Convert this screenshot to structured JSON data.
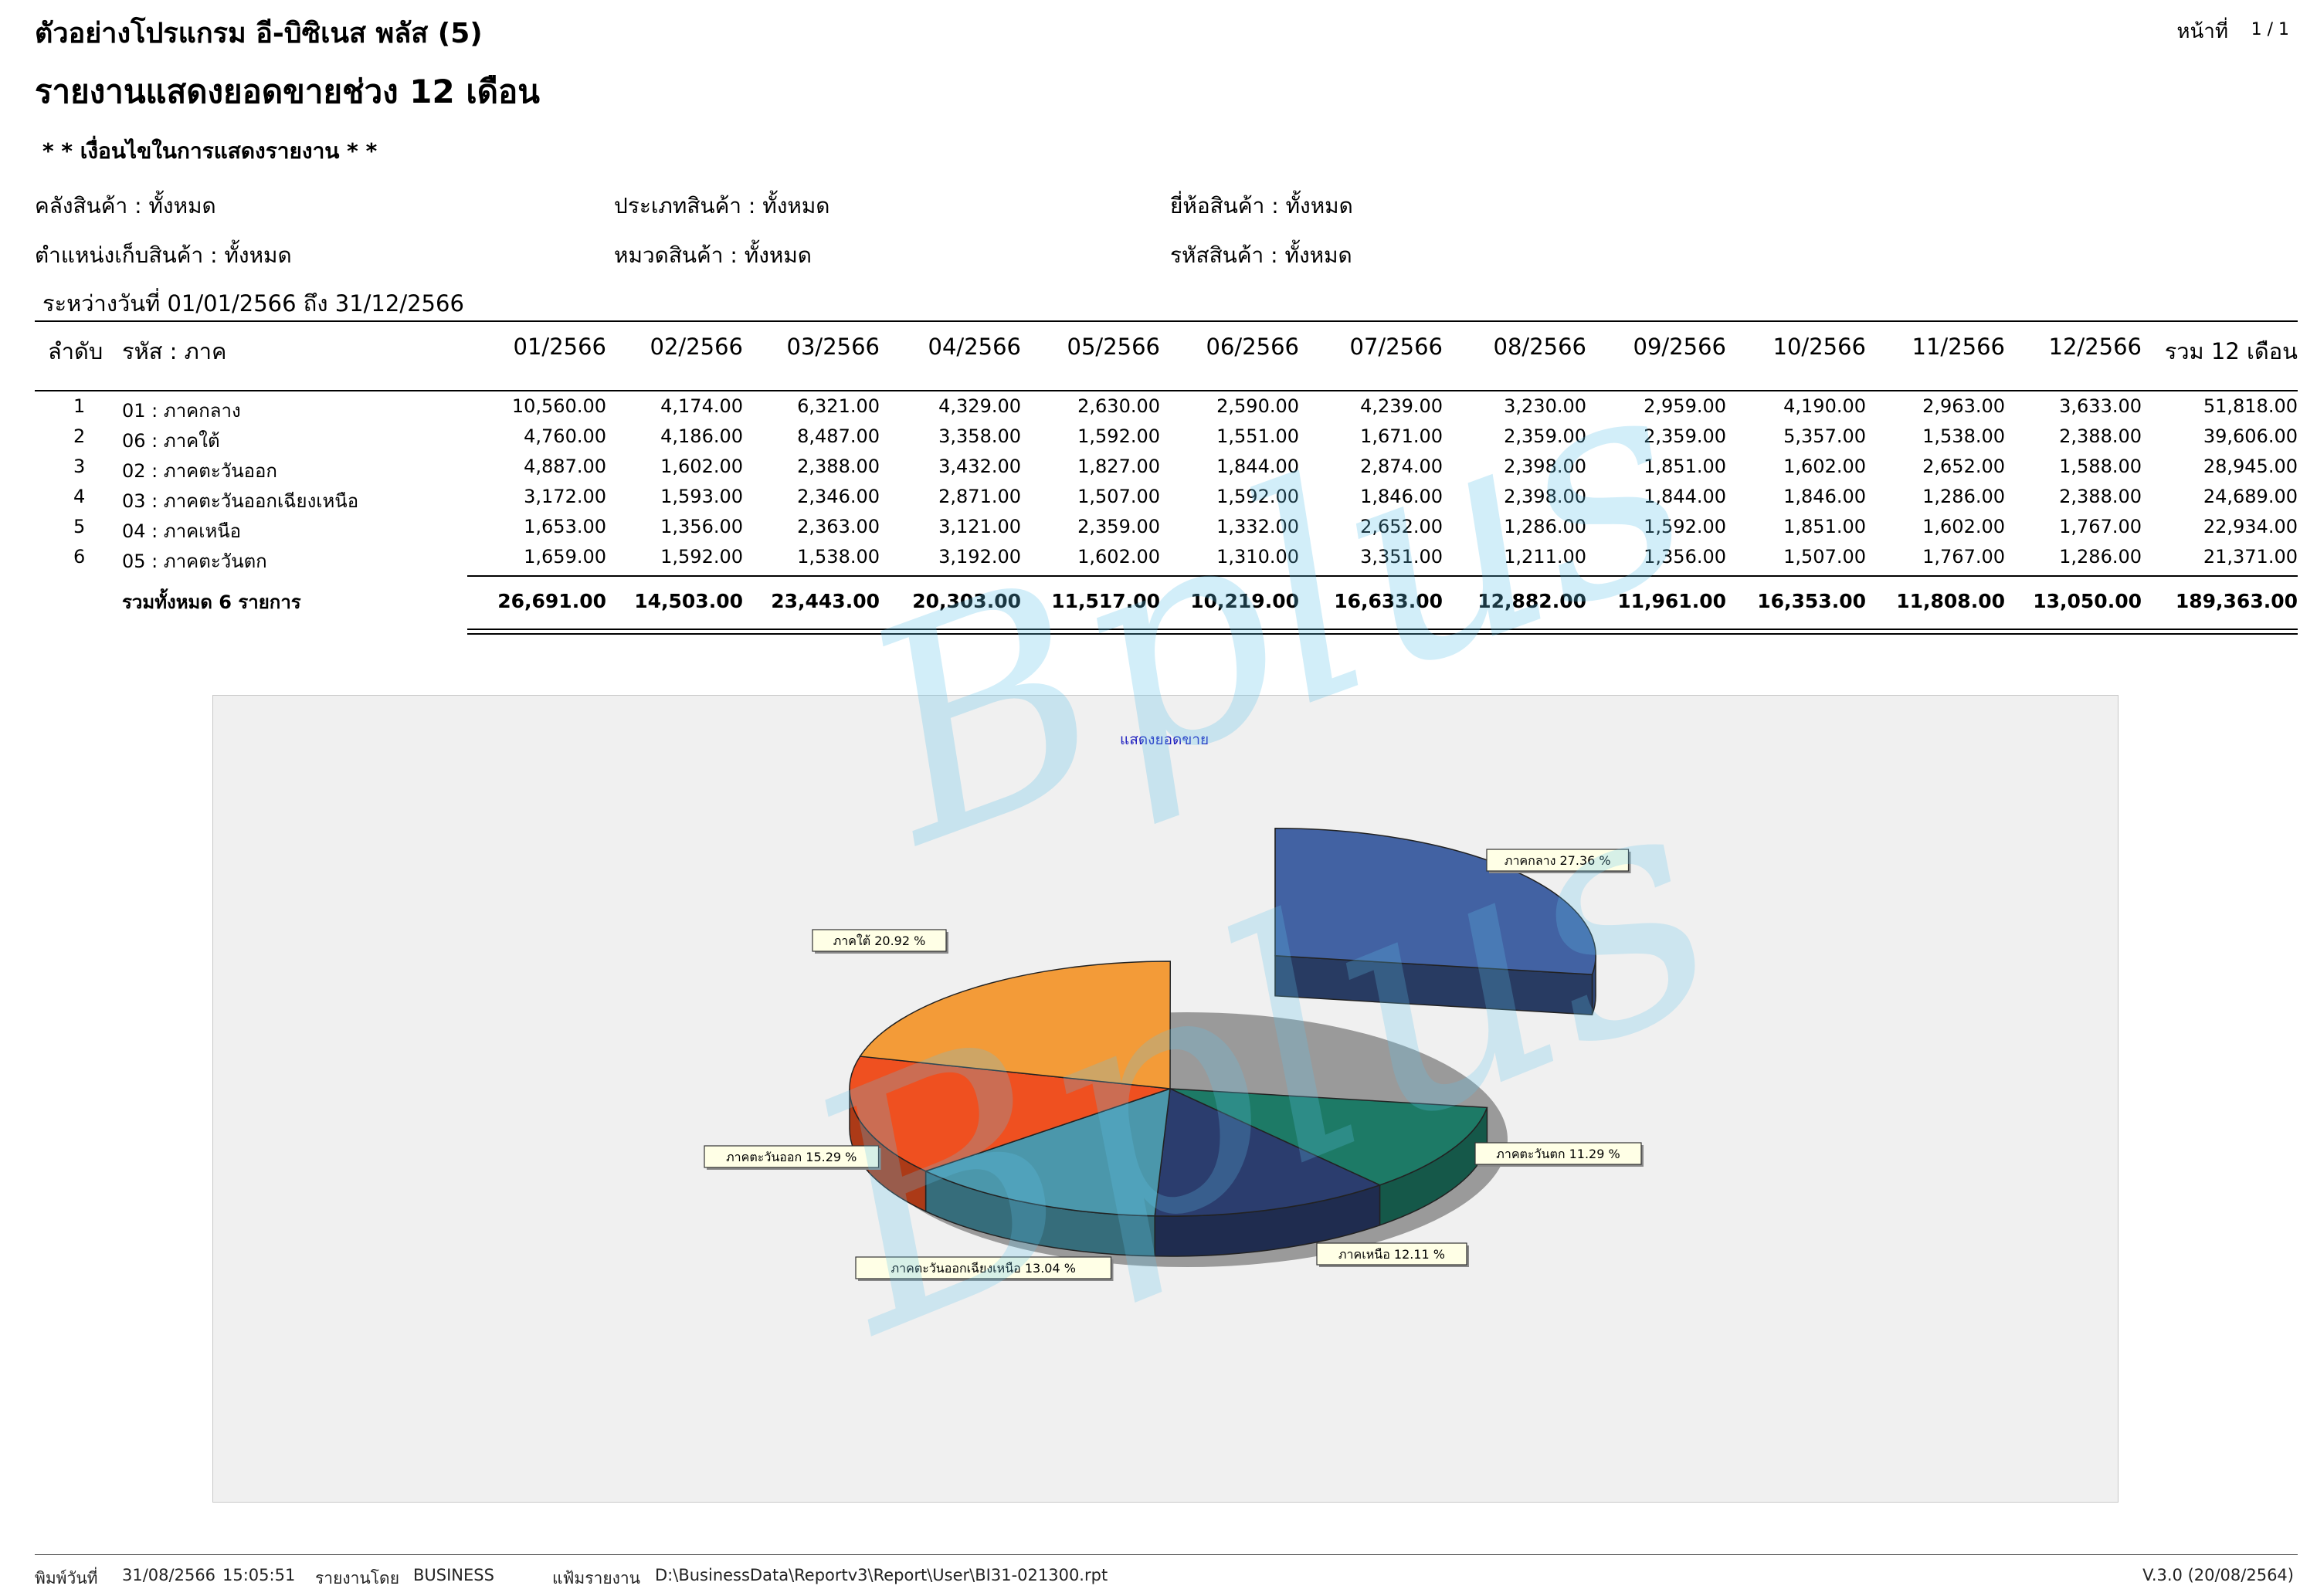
{
  "header": {
    "company": "ตัวอย่างโปรแกรม อี-บิซิเนส พลัส (5)",
    "report_title": "รายงานแสดงยอดขายช่วง 12 เดือน",
    "page_label": "หน้าที่",
    "page_number": "1 / 1"
  },
  "conditions": {
    "heading": "* * เงื่อนไขในการแสดงรายงาน * *",
    "warehouse": "คลังสินค้า : ทั้งหมด",
    "product_type": "ประเภทสินค้า : ทั้งหมด",
    "brand": "ยี่ห้อสินค้า : ทั้งหมด",
    "location": "ตำแหน่งเก็บสินค้า : ทั้งหมด",
    "category": "หมวดสินค้า : ทั้งหมด",
    "product_code": "รหัสสินค้า : ทั้งหมด",
    "date_range": "ระหว่างวันที่  01/01/2566  ถึง  31/12/2566"
  },
  "table": {
    "col_seq": "ลำดับ",
    "col_code": "รหัส : ภาค",
    "months": [
      "01/2566",
      "02/2566",
      "03/2566",
      "04/2566",
      "05/2566",
      "06/2566",
      "07/2566",
      "08/2566",
      "09/2566",
      "10/2566",
      "11/2566",
      "12/2566"
    ],
    "col_total": "รวม 12 เดือน",
    "rows": [
      {
        "seq": "1",
        "code": "01  :  ภาคกลาง",
        "values": [
          "10,560.00",
          "4,174.00",
          "6,321.00",
          "4,329.00",
          "2,630.00",
          "2,590.00",
          "4,239.00",
          "3,230.00",
          "2,959.00",
          "4,190.00",
          "2,963.00",
          "3,633.00"
        ],
        "total": "51,818.00"
      },
      {
        "seq": "2",
        "code": "06  :  ภาคใต้",
        "values": [
          "4,760.00",
          "4,186.00",
          "8,487.00",
          "3,358.00",
          "1,592.00",
          "1,551.00",
          "1,671.00",
          "2,359.00",
          "2,359.00",
          "5,357.00",
          "1,538.00",
          "2,388.00"
        ],
        "total": "39,606.00"
      },
      {
        "seq": "3",
        "code": "02  :  ภาคตะวันออก",
        "values": [
          "4,887.00",
          "1,602.00",
          "2,388.00",
          "3,432.00",
          "1,827.00",
          "1,844.00",
          "2,874.00",
          "2,398.00",
          "1,851.00",
          "1,602.00",
          "2,652.00",
          "1,588.00"
        ],
        "total": "28,945.00"
      },
      {
        "seq": "4",
        "code": "03  :  ภาคตะวันออกเฉียงเหนือ",
        "values": [
          "3,172.00",
          "1,593.00",
          "2,346.00",
          "2,871.00",
          "1,507.00",
          "1,592.00",
          "1,846.00",
          "2,398.00",
          "1,844.00",
          "1,846.00",
          "1,286.00",
          "2,388.00"
        ],
        "total": "24,689.00"
      },
      {
        "seq": "5",
        "code": "04  :  ภาคเหนือ",
        "values": [
          "1,653.00",
          "1,356.00",
          "2,363.00",
          "3,121.00",
          "2,359.00",
          "1,332.00",
          "2,652.00",
          "1,286.00",
          "1,592.00",
          "1,851.00",
          "1,602.00",
          "1,767.00"
        ],
        "total": "22,934.00"
      },
      {
        "seq": "6",
        "code": "05  :  ภาคตะวันตก",
        "values": [
          "1,659.00",
          "1,592.00",
          "1,538.00",
          "3,192.00",
          "1,602.00",
          "1,310.00",
          "3,351.00",
          "1,211.00",
          "1,356.00",
          "1,507.00",
          "1,767.00",
          "1,286.00"
        ],
        "total": "21,371.00"
      }
    ],
    "total_label": "รวมทั้งหมด 6 รายการ",
    "total_values": [
      "26,691.00",
      "14,503.00",
      "23,443.00",
      "20,303.00",
      "11,517.00",
      "10,219.00",
      "16,633.00",
      "12,882.00",
      "11,961.00",
      "16,353.00",
      "11,808.00",
      "13,050.00"
    ],
    "grand_total": "189,363.00"
  },
  "chart_data": {
    "type": "pie",
    "title": "แสดงยอดขาย",
    "slices": [
      {
        "label": "ภาคกลาง 27.36 %",
        "percent": 27.36,
        "color": "#4262a3",
        "exploded": true
      },
      {
        "label": "ภาคตะวันตก 11.29 %",
        "percent": 11.29,
        "color": "#1d7a66"
      },
      {
        "label": "ภาคเหนือ 12.11 %",
        "percent": 12.11,
        "color": "#2b3d6e"
      },
      {
        "label": "ภาคตะวันออกเฉียงเหนือ 13.04 %",
        "percent": 13.04,
        "color": "#4b97ab"
      },
      {
        "label": "ภาคตะวันออก 15.29 %",
        "percent": 15.29,
        "color": "#ef5020"
      },
      {
        "label": "ภาคใต้ 20.92 %",
        "percent": 20.92,
        "color": "#f39b38"
      }
    ]
  },
  "watermark": {
    "text": "Bplus"
  },
  "footer": {
    "print_date_label": "พิมพ์วันที่",
    "print_date": "31/08/2566",
    "print_time": "15:05:51",
    "reported_by_label": "รายงานโดย",
    "reported_by": "BUSINESS",
    "report_file_label": "แฟ้มรายงาน",
    "report_file": "D:\\BusinessData\\Reportv3\\Report\\User\\BI31-021300.rpt",
    "version": "V.3.0 (20/08/2564)"
  }
}
